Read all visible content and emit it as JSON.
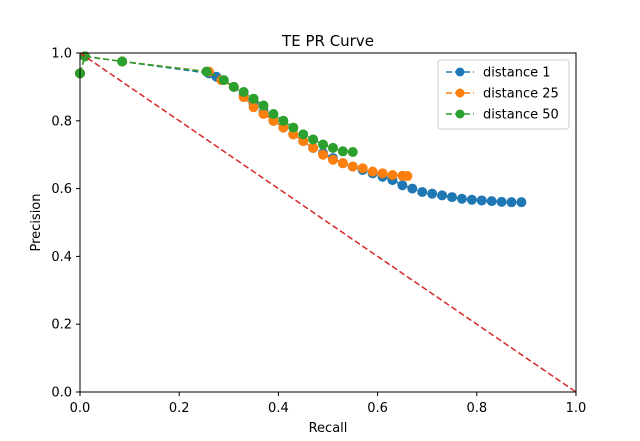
{
  "chart_data": {
    "type": "line",
    "title": "TE PR Curve",
    "xlabel": "Recall",
    "ylabel": "Precision",
    "xlim": [
      0,
      1
    ],
    "ylim": [
      0,
      1
    ],
    "xticks": [
      "0.0",
      "0.2",
      "0.4",
      "0.6",
      "0.8",
      "1.0"
    ],
    "yticks": [
      "0.0",
      "0.2",
      "0.4",
      "0.6",
      "0.8",
      "1.0"
    ],
    "grid": false,
    "legend_position": "top-right",
    "series": [
      {
        "name": "distance 1",
        "color": "#1f77b4",
        "linestyle": "dashed",
        "marker": "circle",
        "x": [
          0.0,
          0.01,
          0.085,
          0.26,
          0.275,
          0.31,
          0.33,
          0.35,
          0.37,
          0.39,
          0.41,
          0.43,
          0.45,
          0.47,
          0.49,
          0.51,
          0.53,
          0.55,
          0.57,
          0.59,
          0.61,
          0.63,
          0.65,
          0.67,
          0.69,
          0.71,
          0.73,
          0.75,
          0.77,
          0.79,
          0.81,
          0.83,
          0.85,
          0.87,
          0.89
        ],
        "y": [
          0.94,
          0.99,
          0.975,
          0.94,
          0.93,
          0.9,
          0.875,
          0.85,
          0.825,
          0.8,
          0.78,
          0.76,
          0.74,
          0.72,
          0.705,
          0.69,
          0.675,
          0.665,
          0.655,
          0.645,
          0.635,
          0.625,
          0.61,
          0.6,
          0.59,
          0.585,
          0.58,
          0.575,
          0.57,
          0.567,
          0.565,
          0.563,
          0.561,
          0.56,
          0.56
        ]
      },
      {
        "name": "distance 25",
        "color": "#ff7f0e",
        "linestyle": "dashed",
        "marker": "circle",
        "x": [
          0.0,
          0.01,
          0.085,
          0.26,
          0.285,
          0.31,
          0.33,
          0.35,
          0.37,
          0.39,
          0.41,
          0.43,
          0.45,
          0.47,
          0.49,
          0.51,
          0.53,
          0.55,
          0.57,
          0.59,
          0.61,
          0.63,
          0.65,
          0.66
        ],
        "y": [
          0.94,
          0.99,
          0.975,
          0.945,
          0.92,
          0.9,
          0.87,
          0.84,
          0.82,
          0.8,
          0.78,
          0.76,
          0.74,
          0.72,
          0.7,
          0.685,
          0.675,
          0.665,
          0.66,
          0.65,
          0.645,
          0.64,
          0.638,
          0.637
        ]
      },
      {
        "name": "distance 50",
        "color": "#2ca02c",
        "linestyle": "dashed",
        "marker": "circle",
        "x": [
          0.0,
          0.01,
          0.085,
          0.255,
          0.29,
          0.31,
          0.33,
          0.35,
          0.37,
          0.39,
          0.41,
          0.43,
          0.45,
          0.47,
          0.49,
          0.51,
          0.53,
          0.55
        ],
        "y": [
          0.94,
          0.99,
          0.975,
          0.945,
          0.92,
          0.9,
          0.885,
          0.865,
          0.845,
          0.82,
          0.8,
          0.78,
          0.76,
          0.745,
          0.73,
          0.72,
          0.71,
          0.708
        ]
      },
      {
        "name": "",
        "color": "#d62728",
        "linestyle": "dashed",
        "marker": "none",
        "x": [
          0.0,
          1.0
        ],
        "y": [
          1.0,
          0.0
        ]
      }
    ]
  }
}
